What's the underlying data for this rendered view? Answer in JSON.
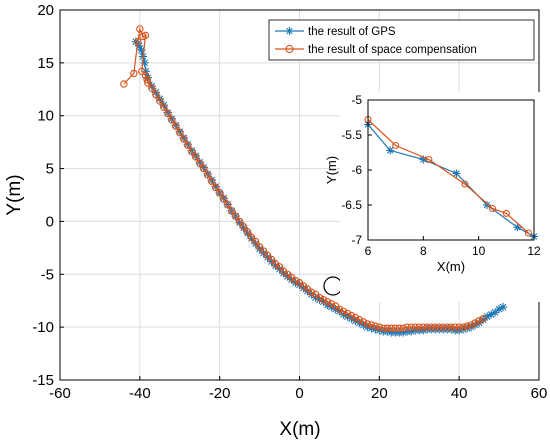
{
  "chart_data": [
    {
      "type": "line",
      "xlabel": "X(m)",
      "ylabel": "Y(m)",
      "xlim": [
        -60,
        60
      ],
      "ylim": [
        -15,
        20
      ],
      "xticks": [
        -60,
        -40,
        -20,
        0,
        20,
        40,
        60
      ],
      "yticks": [
        -15,
        -10,
        -5,
        0,
        5,
        10,
        15,
        20
      ],
      "grid": true,
      "legend": "top-right",
      "series": [
        {
          "name": "the result of GPS",
          "color": "#1f77b4",
          "marker": "asterisk",
          "x": [
            -41,
            -40.2,
            -39.6,
            -39.2,
            -38.8,
            -38.5,
            -38,
            -37,
            -36,
            -35,
            -34,
            -33,
            -32,
            -31,
            -30,
            -29,
            -28,
            -27,
            -26,
            -25,
            -24,
            -23,
            -22,
            -21,
            -20,
            -19,
            -18,
            -17,
            -16,
            -15,
            -14,
            -13,
            -12,
            -11,
            -10,
            -9,
            -8,
            -7,
            -6,
            -5,
            -4,
            -3,
            -2,
            -1,
            0,
            1,
            2,
            3,
            4,
            5,
            6,
            7,
            8,
            9,
            10,
            11,
            12,
            13,
            14,
            15,
            16,
            17,
            18,
            19,
            20,
            21,
            22,
            23,
            24,
            25,
            26,
            27,
            28,
            29,
            30,
            31,
            32,
            33,
            34,
            35,
            36,
            37,
            38,
            39,
            40,
            41,
            42,
            43,
            44,
            45,
            46,
            47,
            48,
            49,
            50,
            51
          ],
          "y": [
            17,
            16.6,
            16.2,
            15.6,
            15,
            14.2,
            13.6,
            12.8,
            12.2,
            11.6,
            11,
            10.3,
            9.7,
            9.1,
            8.5,
            7.9,
            7.3,
            6.7,
            6.2,
            5.6,
            5.1,
            4.5,
            3.9,
            3.3,
            2.7,
            2.2,
            1.6,
            1.0,
            0.5,
            -0.1,
            -0.6,
            -1.1,
            -1.6,
            -2.1,
            -2.6,
            -3.0,
            -3.4,
            -3.8,
            -4.2,
            -4.5,
            -4.9,
            -5.2,
            -5.5,
            -5.8,
            -6.0,
            -6.3,
            -6.6,
            -6.9,
            -7.2,
            -7.4,
            -7.6,
            -7.9,
            -8.1,
            -8.3,
            -8.5,
            -8.8,
            -9.0,
            -9.2,
            -9.4,
            -9.6,
            -9.8,
            -10.0,
            -10.1,
            -10.2,
            -10.3,
            -10.4,
            -10.4,
            -10.5,
            -10.5,
            -10.5,
            -10.5,
            -10.4,
            -10.4,
            -10.3,
            -10.3,
            -10.3,
            -10.2,
            -10.2,
            -10.2,
            -10.2,
            -10.2,
            -10.2,
            -10.2,
            -10.3,
            -10.3,
            -10.2,
            -10.1,
            -10.0,
            -9.8,
            -9.6,
            -9.3,
            -9.0,
            -8.8,
            -8.6,
            -8.3,
            -8.1
          ]
        },
        {
          "name": "the result of space compensation",
          "color": "#d95319",
          "marker": "circle",
          "x": [
            -44,
            -41.5,
            -40.5,
            -40,
            -39.2,
            -38.6,
            -39.5,
            -38.6,
            -38.2,
            -38,
            -37,
            -36,
            -35,
            -34,
            -33,
            -32,
            -31,
            -30,
            -29,
            -28,
            -27,
            -26,
            -25,
            -24,
            -23,
            -22,
            -21,
            -20,
            -19,
            -18,
            -17,
            -16,
            -15,
            -14,
            -13,
            -12,
            -11,
            -10,
            -9,
            -8,
            -7,
            -6,
            -5,
            -4,
            -3,
            -2,
            -1,
            0,
            1,
            2,
            3,
            4,
            5,
            6,
            7,
            8,
            9,
            10,
            11,
            12,
            13,
            14,
            15,
            16,
            17,
            18,
            19,
            20,
            21,
            22,
            23,
            24,
            25,
            26,
            27,
            28,
            29,
            30,
            31,
            32,
            33,
            34,
            35,
            36,
            37,
            38,
            39,
            40,
            41,
            42,
            43,
            44,
            45,
            46
          ],
          "y": [
            13,
            14,
            17,
            18.2,
            17.5,
            17.6,
            14.2,
            13.8,
            13.4,
            13.1,
            12.6,
            12.0,
            11.4,
            10.8,
            10.2,
            9.6,
            9.0,
            8.4,
            7.8,
            7.2,
            6.6,
            6.1,
            5.5,
            5.0,
            4.4,
            3.8,
            3.2,
            2.7,
            2.1,
            1.6,
            1.0,
            0.5,
            0.0,
            -0.5,
            -1.0,
            -1.5,
            -1.9,
            -2.4,
            -2.8,
            -3.2,
            -3.6,
            -4.0,
            -4.3,
            -4.7,
            -5.0,
            -5.3,
            -5.6,
            -5.8,
            -6.1,
            -6.4,
            -6.7,
            -6.9,
            -7.2,
            -7.4,
            -7.6,
            -7.8,
            -8.0,
            -8.3,
            -8.5,
            -8.7,
            -8.9,
            -9.1,
            -9.3,
            -9.5,
            -9.7,
            -9.8,
            -9.9,
            -10.0,
            -10.1,
            -10.1,
            -10.1,
            -10.1,
            -10.1,
            -10.1,
            -10.0,
            -10.0,
            -10.0,
            -10.0,
            -10.0,
            -10.0,
            -10.0,
            -10.0,
            -10.0,
            -10.0,
            -10.0,
            -10.0,
            -10.0,
            -10.0,
            -10.0,
            -9.9,
            -9.8,
            -9.6,
            -9.4,
            -9.2
          ]
        }
      ]
    },
    {
      "type": "line",
      "xlabel": "X(m)",
      "ylabel": "Y(m)",
      "xlim": [
        6,
        12
      ],
      "ylim": [
        -7,
        -5
      ],
      "xticks": [
        6,
        8,
        10,
        12
      ],
      "yticks": [
        -7,
        -6.5,
        -6,
        -5.5,
        -5
      ],
      "xtick_labels": [
        "6",
        "8",
        "10",
        "12"
      ],
      "ytick_labels": [
        "-7",
        "-6.5",
        "-6",
        "-5.5",
        "-5"
      ],
      "grid": false,
      "series": [
        {
          "name": "the result of GPS",
          "color": "#1f77b4",
          "marker": "asterisk",
          "x": [
            6,
            6.8,
            8,
            9.2,
            10.3,
            11.4,
            12
          ],
          "y": [
            -5.35,
            -5.72,
            -5.85,
            -6.05,
            -6.5,
            -6.82,
            -6.95
          ]
        },
        {
          "name": "the result of space compensation",
          "color": "#d95319",
          "marker": "circle",
          "x": [
            6,
            7,
            8.2,
            9.5,
            10.5,
            11,
            11.8
          ],
          "y": [
            -5.28,
            -5.65,
            -5.85,
            -6.2,
            -6.55,
            -6.62,
            -6.9
          ]
        }
      ]
    }
  ]
}
